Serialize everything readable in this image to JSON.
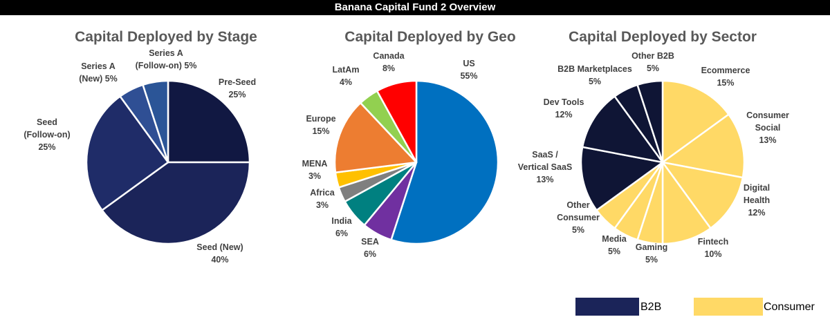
{
  "header": {
    "title": "Banana Capital Fund 2 Overview"
  },
  "colors": {
    "b2b": "#1b2459",
    "consumer": "#ffd966"
  },
  "legend": [
    {
      "label": "B2B",
      "color": "#1b2459"
    },
    {
      "label": "Consumer",
      "color": "#ffd966"
    }
  ],
  "chart_data": [
    {
      "type": "pie",
      "title": "Capital Deployed by Stage",
      "slices": [
        {
          "label": [
            "Pre-Seed",
            "25%"
          ],
          "value": 25,
          "color": "#111842"
        },
        {
          "label": [
            "Seed (New)",
            "40%"
          ],
          "value": 40,
          "color": "#1b2459"
        },
        {
          "label": [
            "Seed",
            "(Follow-on)",
            "25%"
          ],
          "value": 25,
          "color": "#1f2c68"
        },
        {
          "label": [
            "Series A",
            "(New) 5%"
          ],
          "value": 5,
          "color": "#2f4f94"
        },
        {
          "label": [
            "Series A",
            "(Follow-on) 5%"
          ],
          "value": 5,
          "color": "#2b5597"
        }
      ]
    },
    {
      "type": "pie",
      "title": "Capital Deployed by Geo",
      "slices": [
        {
          "label": [
            "US",
            "55%"
          ],
          "value": 55,
          "color": "#0070c0"
        },
        {
          "label": [
            "SEA",
            "6%"
          ],
          "value": 6,
          "color": "#7030a0"
        },
        {
          "label": [
            "India",
            "6%"
          ],
          "value": 6,
          "color": "#008080"
        },
        {
          "label": [
            "Africa",
            "3%"
          ],
          "value": 3,
          "color": "#7f7f7f"
        },
        {
          "label": [
            "MENA",
            "3%"
          ],
          "value": 3,
          "color": "#ffc000"
        },
        {
          "label": [
            "Europe",
            "15%"
          ],
          "value": 15,
          "color": "#ed7d31"
        },
        {
          "label": [
            "LatAm",
            "4%"
          ],
          "value": 4,
          "color": "#92d050"
        },
        {
          "label": [
            "Canada",
            "8%"
          ],
          "value": 8,
          "color": "#ff0000"
        }
      ]
    },
    {
      "type": "pie",
      "title": "Capital Deployed by Sector",
      "slices": [
        {
          "label": [
            "Ecommerce",
            "15%"
          ],
          "value": 15,
          "color": "#ffd966"
        },
        {
          "label": [
            "Consumer",
            "Social",
            "13%"
          ],
          "value": 13,
          "color": "#ffd966"
        },
        {
          "label": [
            "Digital",
            "Health",
            "12%"
          ],
          "value": 12,
          "color": "#ffd966"
        },
        {
          "label": [
            "Fintech",
            "10%"
          ],
          "value": 10,
          "color": "#ffd966"
        },
        {
          "label": [
            "Gaming",
            "5%"
          ],
          "value": 5,
          "color": "#ffd966"
        },
        {
          "label": [
            "Media",
            "5%"
          ],
          "value": 5,
          "color": "#ffd966"
        },
        {
          "label": [
            "Other",
            "Consumer",
            "5%"
          ],
          "value": 5,
          "color": "#ffd966"
        },
        {
          "label": [
            "SaaS /",
            "Vertical SaaS",
            "13%"
          ],
          "value": 13,
          "color": "#0f1535"
        },
        {
          "label": [
            "Dev Tools",
            "12%"
          ],
          "value": 12,
          "color": "#0f1535"
        },
        {
          "label": [
            "B2B Marketplaces",
            "5%"
          ],
          "value": 5,
          "color": "#0f1535"
        },
        {
          "label": [
            "Other B2B",
            "5%"
          ],
          "value": 5,
          "color": "#0f1535"
        }
      ]
    }
  ]
}
